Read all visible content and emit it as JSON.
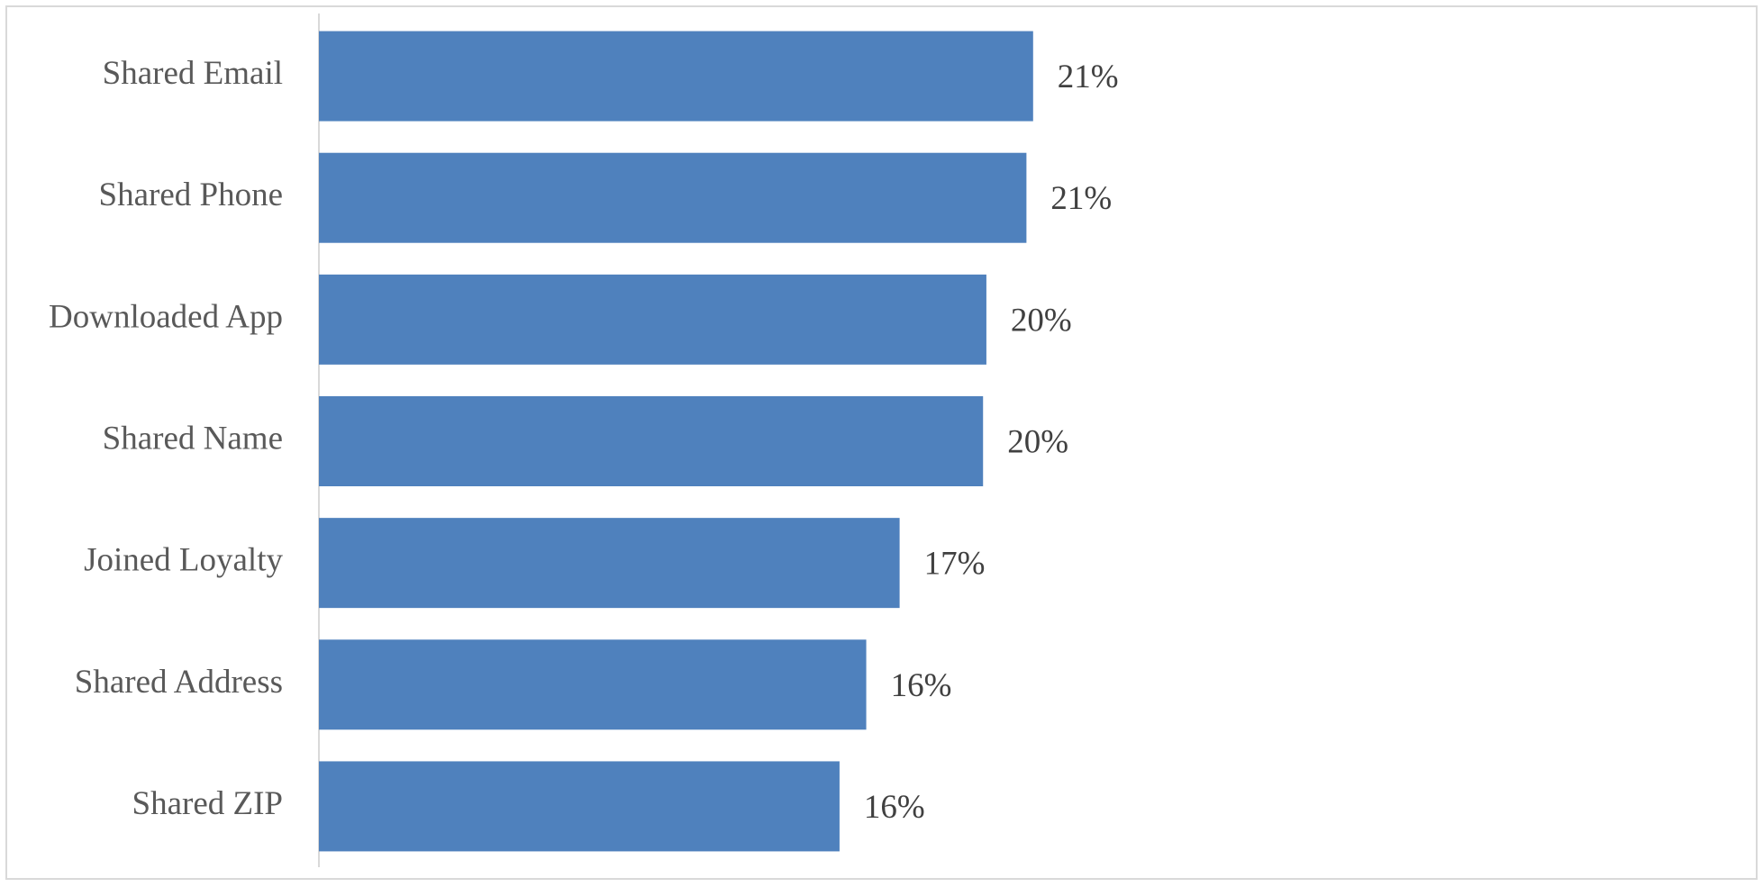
{
  "chart_data": {
    "type": "bar",
    "orientation": "horizontal",
    "categories": [
      "Shared Email",
      "Shared Phone",
      "Downloaded App",
      "Shared Name",
      "Joined Loyalty",
      "Shared Address",
      "Shared ZIP"
    ],
    "values": [
      21.4,
      21.2,
      20.0,
      19.9,
      17.4,
      16.4,
      15.6
    ],
    "value_labels": [
      "21%",
      "21%",
      "20%",
      "20%",
      "17%",
      "16%",
      "16%"
    ],
    "color": "#4f81bd",
    "xlim": [
      0,
      43
    ]
  }
}
